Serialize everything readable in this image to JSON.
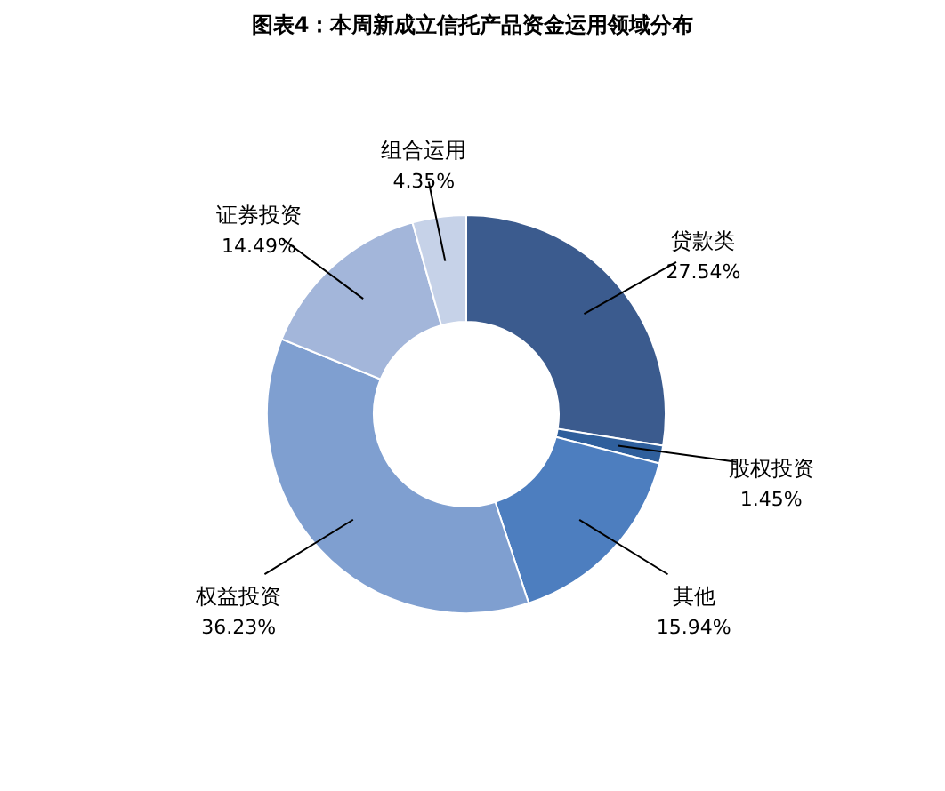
{
  "chart_data": {
    "type": "donut",
    "title": "图表4：本周新成立信托产品资金运用领域分布",
    "categories": [
      "贷款类",
      "股权投资",
      "其他",
      "权益投资",
      "证券投资",
      "组合运用"
    ],
    "values": [
      27.54,
      1.45,
      15.94,
      36.23,
      14.49,
      4.35
    ],
    "colors": [
      "#3b5b8e",
      "#2f5f9c",
      "#4d7ebf",
      "#7f9fd0",
      "#a3b6da",
      "#c6d2e8"
    ],
    "value_labels": [
      "27.54%",
      "1.45%",
      "15.94%",
      "36.23%",
      "14.49%",
      "4.35%"
    ]
  }
}
